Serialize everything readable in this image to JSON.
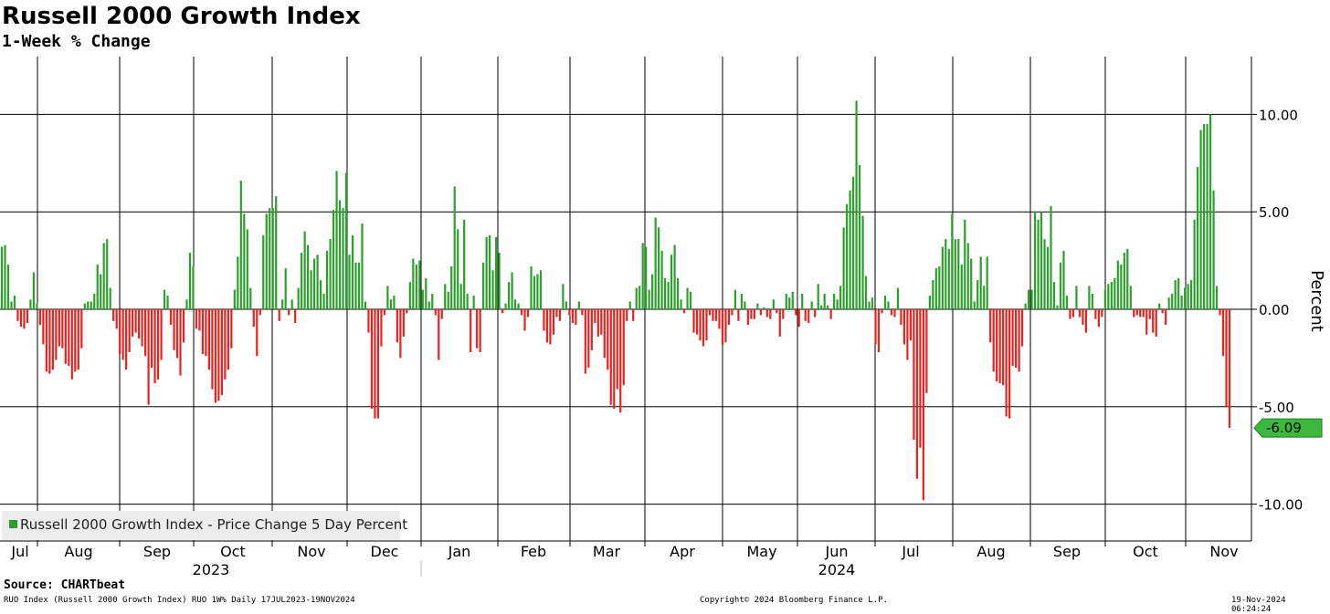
{
  "header": {
    "title": "Russell 2000 Growth Index",
    "subtitle": "1-Week % Change"
  },
  "footer": {
    "source": "Source: CHARTbeat",
    "ticker_line": "RUO Index (Russell 2000 Growth Index) RUO 1W% Daily 17JUL2023-19NOV2024",
    "copyright": "Copyright© 2024 Bloomberg Finance L.P.",
    "timestamp": "19-Nov-2024 06:24:24"
  },
  "colors": {
    "positive": "#2ca02c",
    "negative": "#e8231f",
    "last_value_bg": "#3cb83c",
    "grid": "#000000"
  },
  "chart_data": {
    "type": "bar",
    "ylabel": "Percent",
    "ylim": [
      -12.5,
      12.5
    ],
    "yticks": [
      10.0,
      5.0,
      0.0,
      -5.0,
      -10.0
    ],
    "ytick_labels": [
      "10.00",
      "5.00",
      "0.00",
      "-5.00",
      "-10.00"
    ],
    "grid": true,
    "legend": {
      "position": "bottom-left",
      "entries": [
        "Russell 2000 Growth Index - Price Change 5 Day Percent"
      ]
    },
    "last_value_label": "-6.09",
    "x_month_labels": [
      "Jul",
      "Aug",
      "Sep",
      "Oct",
      "Nov",
      "Dec",
      "Jan",
      "Feb",
      "Mar",
      "Apr",
      "May",
      "Jun",
      "Jul",
      "Aug",
      "Sep",
      "Oct",
      "Nov"
    ],
    "x_year_labels": [
      "2023",
      "2024"
    ],
    "series": [
      {
        "name": "Russell 2000 Growth Index - Price Change 5 Day Percent",
        "values": [
          3.2,
          3.3,
          2.3,
          0.4,
          0.7,
          -0.6,
          -0.9,
          -1.0,
          -0.7,
          0.5,
          1.9,
          0.3,
          -0.8,
          -1.8,
          -3.2,
          -3.3,
          -3.1,
          -2.6,
          -1.9,
          -2.0,
          -2.8,
          -2.9,
          -3.6,
          -3.2,
          -3.1,
          -2.0,
          0.3,
          0.4,
          0.4,
          0.8,
          2.3,
          1.8,
          3.4,
          3.6,
          1.1,
          -0.6,
          -1.0,
          -2.3,
          -2.6,
          -3.1,
          -2.2,
          -1.4,
          -1.2,
          -1.5,
          -1.9,
          -2.4,
          -4.9,
          -3.0,
          -3.8,
          -3.6,
          -2.6,
          1.0,
          0.7,
          -0.8,
          -2.1,
          -2.5,
          -3.4,
          -1.7,
          0.5,
          2.9,
          2.2,
          -1.0,
          -1.1,
          -2.3,
          -2.4,
          -3.1,
          -4.1,
          -4.8,
          -4.7,
          -4.4,
          -3.6,
          -3.1,
          -2.0,
          1.0,
          2.7,
          6.6,
          4.9,
          4.1,
          1.1,
          -0.9,
          -2.4,
          -0.3,
          3.8,
          4.9,
          5.2,
          5.2,
          5.8,
          -0.6,
          0.5,
          2.1,
          -0.3,
          0.5,
          -0.7,
          1.1,
          2.9,
          4.0,
          3.3,
          2.0,
          2.6,
          2.8,
          1.5,
          0.8,
          3.0,
          3.6,
          5.1,
          7.1,
          5.6,
          5.2,
          7.0,
          2.8,
          3.8,
          2.4,
          2.4,
          4.4,
          0.4,
          -1.2,
          -5.1,
          -5.6,
          -5.6,
          -1.9,
          -0.3,
          1.2,
          0.5,
          0.7,
          -1.7,
          -2.5,
          -1.4,
          -0.2,
          1.4,
          2.6,
          2.3,
          2.5,
          1.0,
          1.6,
          0.4,
          0.8,
          -0.3,
          -2.6,
          -0.5,
          1.3,
          0.9,
          2.2,
          6.3,
          4.1,
          1.3,
          4.6,
          0.8,
          -2.2,
          0.7,
          -2.0,
          -2.2,
          2.4,
          3.7,
          3.8,
          2.0,
          3.7,
          2.9,
          -0.2,
          0.3,
          1.4,
          1.9,
          0.5,
          0.3,
          -0.3,
          -1.1,
          -0.4,
          2.2,
          1.7,
          1.8,
          2.0,
          -1.1,
          -1.7,
          -1.8,
          -1.3,
          -0.4,
          -0.6,
          1.3,
          0.4,
          -0.3,
          -0.7,
          -0.8,
          0.4,
          -0.3,
          -3.3,
          -3.0,
          -2.1,
          -0.7,
          -1.4,
          -1.3,
          -2.5,
          -3.1,
          -4.9,
          -5.1,
          -4.1,
          -5.3,
          -3.9,
          -0.6,
          0.4,
          -0.6,
          1.1,
          1.2,
          3.4,
          3.2,
          1.0,
          1.8,
          4.7,
          4.2,
          3.0,
          1.6,
          1.4,
          2.8,
          3.3,
          1.6,
          0.5,
          -0.2,
          1.1,
          0.9,
          -1.2,
          -1.3,
          -1.6,
          -1.9,
          -1.6,
          -0.3,
          -0.6,
          -0.6,
          -1.0,
          -1.8,
          -1.7,
          -0.8,
          -0.3,
          1.0,
          -0.6,
          0.8,
          0.4,
          -0.8,
          -0.5,
          -0.5,
          0.3,
          -0.3,
          0.1,
          -0.4,
          -0.5,
          0.5,
          -0.2,
          -1.4,
          -0.5,
          0.8,
          0.6,
          0.9,
          -0.3,
          -0.9,
          0.8,
          -0.6,
          -0.7,
          0.4,
          -0.4,
          1.3,
          0.2,
          0.8,
          0.2,
          -0.5,
          0.8,
          0.5,
          1.2,
          4.2,
          5.4,
          6.1,
          6.8,
          10.7,
          7.4,
          4.8,
          1.7,
          0.4,
          0.6,
          -1.8,
          -2.2,
          -0.2,
          0.7,
          0.4,
          -0.3,
          -0.4,
          1.1,
          -0.8,
          -1.8,
          -2.6,
          -1.6,
          -6.7,
          -8.7,
          -7.1,
          -9.8,
          -4.3,
          0.7,
          1.5,
          2.1,
          2.2,
          3.2,
          3.6,
          3.1,
          4.9,
          3.6,
          3.6,
          2.3,
          4.6,
          3.4,
          2.6,
          0.4,
          1.5,
          2.7,
          1.2,
          2.7,
          -1.7,
          -3.2,
          -3.7,
          -3.8,
          -3.9,
          -5.5,
          -5.6,
          -2.9,
          -3.0,
          -3.2,
          -1.9,
          0.3,
          1.0,
          1.0,
          5.0,
          4.6,
          5.0,
          3.6,
          3.2,
          5.3,
          1.4,
          0.2,
          2.4,
          3.0,
          0.7,
          -0.5,
          -0.4,
          1.2,
          -0.4,
          -0.8,
          -1.2,
          1.2,
          0.8,
          -0.5,
          -0.9,
          -0.4,
          1.0,
          1.3,
          1.4,
          1.6,
          2.5,
          2.3,
          2.9,
          3.1,
          1.2,
          -0.4,
          -0.3,
          -0.4,
          -0.4,
          -1.3,
          -0.5,
          -1.2,
          -1.4,
          0.3,
          -0.2,
          -0.8,
          0.6,
          0.8,
          1.5,
          1.6,
          0.7,
          1.1,
          1.3,
          1.5,
          4.6,
          7.3,
          9.2,
          9.5,
          9.5,
          10.0,
          6.1,
          1.2,
          -0.3,
          -2.4,
          -5.0,
          -6.09
        ]
      }
    ]
  }
}
